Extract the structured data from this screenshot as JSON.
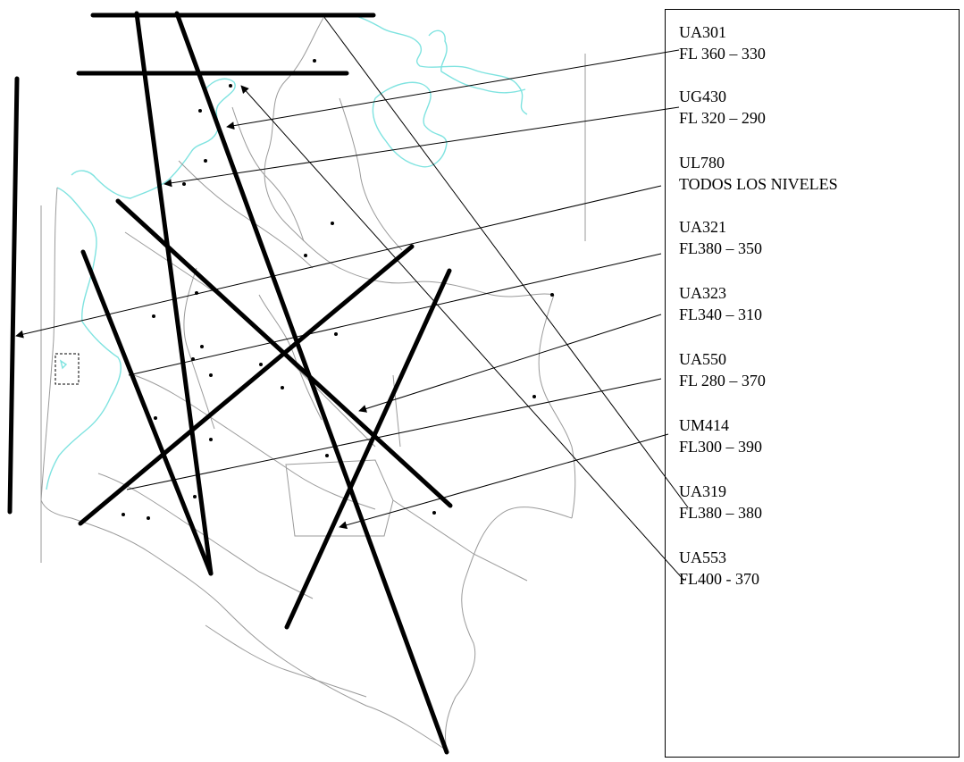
{
  "legend": {
    "items": [
      {
        "code": "UA301",
        "levels": "FL 360 – 330"
      },
      {
        "code": "UG430",
        "levels": "FL 320 – 290"
      },
      {
        "code": "UL780",
        "levels": "TODOS LOS NIVELES"
      },
      {
        "code": "UA321",
        "levels": "FL380 – 350"
      },
      {
        "code": "UA323",
        "levels": "FL340 – 310"
      },
      {
        "code": "UA550",
        "levels": "FL 280 – 370"
      },
      {
        "code": "UM414",
        "levels": "FL300 – 390"
      },
      {
        "code": "UA319",
        "levels": "FL380 – 380"
      },
      {
        "code": "UA553",
        "levels": "FL400 - 370"
      }
    ]
  },
  "colors": {
    "coastline": "#7fe3e0",
    "borders": "#9a9a9a",
    "routes": "#000000"
  }
}
